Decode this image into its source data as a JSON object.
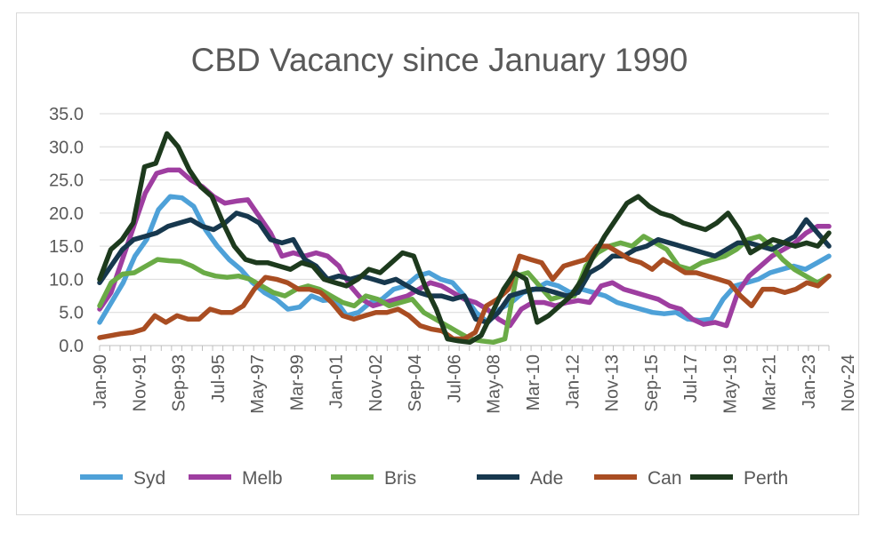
{
  "chart_data": {
    "type": "line",
    "title": "CBD Vacancy since January 1990",
    "xlabel": "",
    "ylabel": "",
    "ylim": [
      0,
      35
    ],
    "y_ticks": [
      "0.0",
      "5.0",
      "10.0",
      "15.0",
      "20.0",
      "25.0",
      "30.0",
      "35.0"
    ],
    "x_tick_labels": [
      "Jan-90",
      "Nov-91",
      "Sep-93",
      "Jul-95",
      "May-97",
      "Mar-99",
      "Jan-01",
      "Nov-02",
      "Sep-04",
      "Jul-06",
      "May-08",
      "Mar-10",
      "Jan-12",
      "Nov-13",
      "Sep-15",
      "Jul-17",
      "May-19",
      "Mar-21",
      "Jan-23",
      "Nov-24"
    ],
    "x_start": 1990.0,
    "x_end": 2025.5,
    "x_step": 0.5,
    "legend_position": "bottom",
    "grid": true,
    "series": [
      {
        "name": "Syd",
        "color": "#4ea1d8",
        "values": [
          3.5,
          6.5,
          9.5,
          13.5,
          16.0,
          20.5,
          22.5,
          22.3,
          21.0,
          17.5,
          15.0,
          13.0,
          11.5,
          9.5,
          8.0,
          7.0,
          5.5,
          5.8,
          7.5,
          6.8,
          7.0,
          4.5,
          5.0,
          6.5,
          7.0,
          8.5,
          9.0,
          10.5,
          11.0,
          10.0,
          9.5,
          7.5,
          5.0,
          3.5,
          5.5,
          6.5,
          8.0,
          8.5,
          9.5,
          9.0,
          8.0,
          8.5,
          8.0,
          7.5,
          6.5,
          6.0,
          5.5,
          5.0,
          4.8,
          5.0,
          4.0,
          3.8,
          4.0,
          7.0,
          9.0,
          9.5,
          10.0,
          11.0,
          11.5,
          12.0,
          11.5,
          12.5,
          13.5
        ]
      },
      {
        "name": "Melb",
        "color": "#9e3ea0",
        "values": [
          5.5,
          8.0,
          13.0,
          18.0,
          23.0,
          26.0,
          26.5,
          26.5,
          25.0,
          24.0,
          22.5,
          21.5,
          21.8,
          22.0,
          19.5,
          17.0,
          13.5,
          14.0,
          13.5,
          14.0,
          13.5,
          12.0,
          9.0,
          7.0,
          6.0,
          6.5,
          7.0,
          7.5,
          8.5,
          9.5,
          9.0,
          8.0,
          7.0,
          6.5,
          5.5,
          4.0,
          3.0,
          5.5,
          6.5,
          6.5,
          6.0,
          6.5,
          6.8,
          6.5,
          9.0,
          9.5,
          8.5,
          8.0,
          7.5,
          7.0,
          6.0,
          5.5,
          4.0,
          3.2,
          3.5,
          3.0,
          8.0,
          10.5,
          12.0,
          13.5,
          14.5,
          15.5,
          17.0,
          18.0,
          18.0
        ]
      },
      {
        "name": "Bris",
        "color": "#6aab46",
        "values": [
          6.0,
          9.5,
          10.8,
          11.0,
          12.0,
          13.0,
          12.8,
          12.7,
          12.0,
          11.0,
          10.5,
          10.3,
          10.5,
          10.0,
          9.0,
          8.0,
          7.5,
          8.5,
          9.0,
          8.5,
          7.5,
          6.5,
          6.0,
          7.5,
          7.0,
          6.0,
          6.5,
          7.0,
          5.0,
          4.0,
          3.0,
          2.0,
          1.0,
          0.7,
          0.5,
          1.0,
          10.5,
          11.0,
          9.0,
          7.0,
          7.5,
          7.5,
          12.0,
          14.0,
          15.0,
          15.5,
          15.0,
          16.5,
          15.5,
          14.5,
          12.0,
          11.5,
          12.5,
          13.0,
          13.5,
          14.5,
          16.0,
          16.5,
          15.0,
          13.0,
          11.5,
          10.5,
          9.5,
          10.5
        ]
      },
      {
        "name": "Ade",
        "color": "#17384e",
        "values": [
          9.5,
          12.0,
          14.5,
          16.0,
          16.5,
          17.0,
          18.0,
          18.5,
          19.0,
          18.0,
          17.5,
          18.5,
          20.0,
          19.5,
          18.5,
          16.0,
          15.5,
          16.0,
          13.0,
          12.0,
          10.0,
          10.5,
          10.0,
          10.5,
          10.0,
          9.5,
          10.0,
          9.0,
          8.0,
          7.5,
          7.5,
          7.0,
          7.5,
          4.0,
          3.5,
          5.0,
          7.5,
          8.0,
          8.5,
          8.5,
          8.0,
          7.5,
          8.0,
          11.0,
          12.0,
          13.5,
          13.5,
          14.5,
          15.0,
          16.0,
          15.5,
          15.0,
          14.5,
          14.0,
          13.5,
          14.5,
          15.5,
          15.5,
          15.0,
          14.5,
          15.5,
          16.5,
          19.0,
          17.0,
          15.0
        ]
      },
      {
        "name": "Can",
        "color": "#a94d22",
        "values": [
          1.2,
          1.5,
          1.8,
          2.0,
          2.5,
          4.5,
          3.5,
          4.5,
          4.0,
          4.0,
          5.5,
          5.0,
          5.0,
          6.0,
          8.5,
          10.3,
          10.0,
          9.5,
          8.5,
          8.5,
          8.0,
          6.5,
          4.5,
          4.0,
          4.5,
          5.0,
          5.0,
          5.5,
          4.5,
          3.0,
          2.5,
          2.2,
          1.0,
          1.0,
          2.0,
          6.0,
          7.0,
          8.5,
          13.5,
          13.0,
          12.5,
          10.0,
          12.0,
          12.5,
          13.0,
          15.0,
          15.0,
          14.0,
          13.0,
          12.5,
          11.5,
          13.0,
          12.0,
          11.0,
          11.0,
          10.5,
          10.0,
          9.5,
          7.5,
          6.0,
          8.5,
          8.5,
          8.0,
          8.5,
          9.5,
          9.0,
          10.5
        ]
      },
      {
        "name": "Perth",
        "color": "#1d3a1d",
        "values": [
          10.0,
          14.5,
          16.0,
          18.5,
          27.0,
          27.5,
          32.0,
          30.0,
          26.5,
          24.0,
          22.5,
          18.5,
          15.0,
          13.0,
          12.5,
          12.5,
          12.0,
          11.5,
          12.5,
          12.0,
          10.0,
          9.5,
          9.0,
          10.0,
          11.5,
          11.0,
          12.5,
          14.0,
          13.5,
          9.0,
          5.5,
          1.0,
          0.7,
          0.5,
          1.5,
          5.0,
          8.5,
          11.0,
          10.0,
          3.5,
          4.5,
          6.0,
          7.5,
          10.0,
          13.5,
          16.5,
          19.0,
          21.5,
          22.5,
          21.0,
          20.0,
          19.5,
          18.5,
          18.0,
          17.5,
          18.5,
          20.0,
          17.5,
          14.0,
          15.0,
          16.0,
          15.5,
          15.0,
          15.5,
          15.0,
          17.0
        ]
      }
    ]
  }
}
